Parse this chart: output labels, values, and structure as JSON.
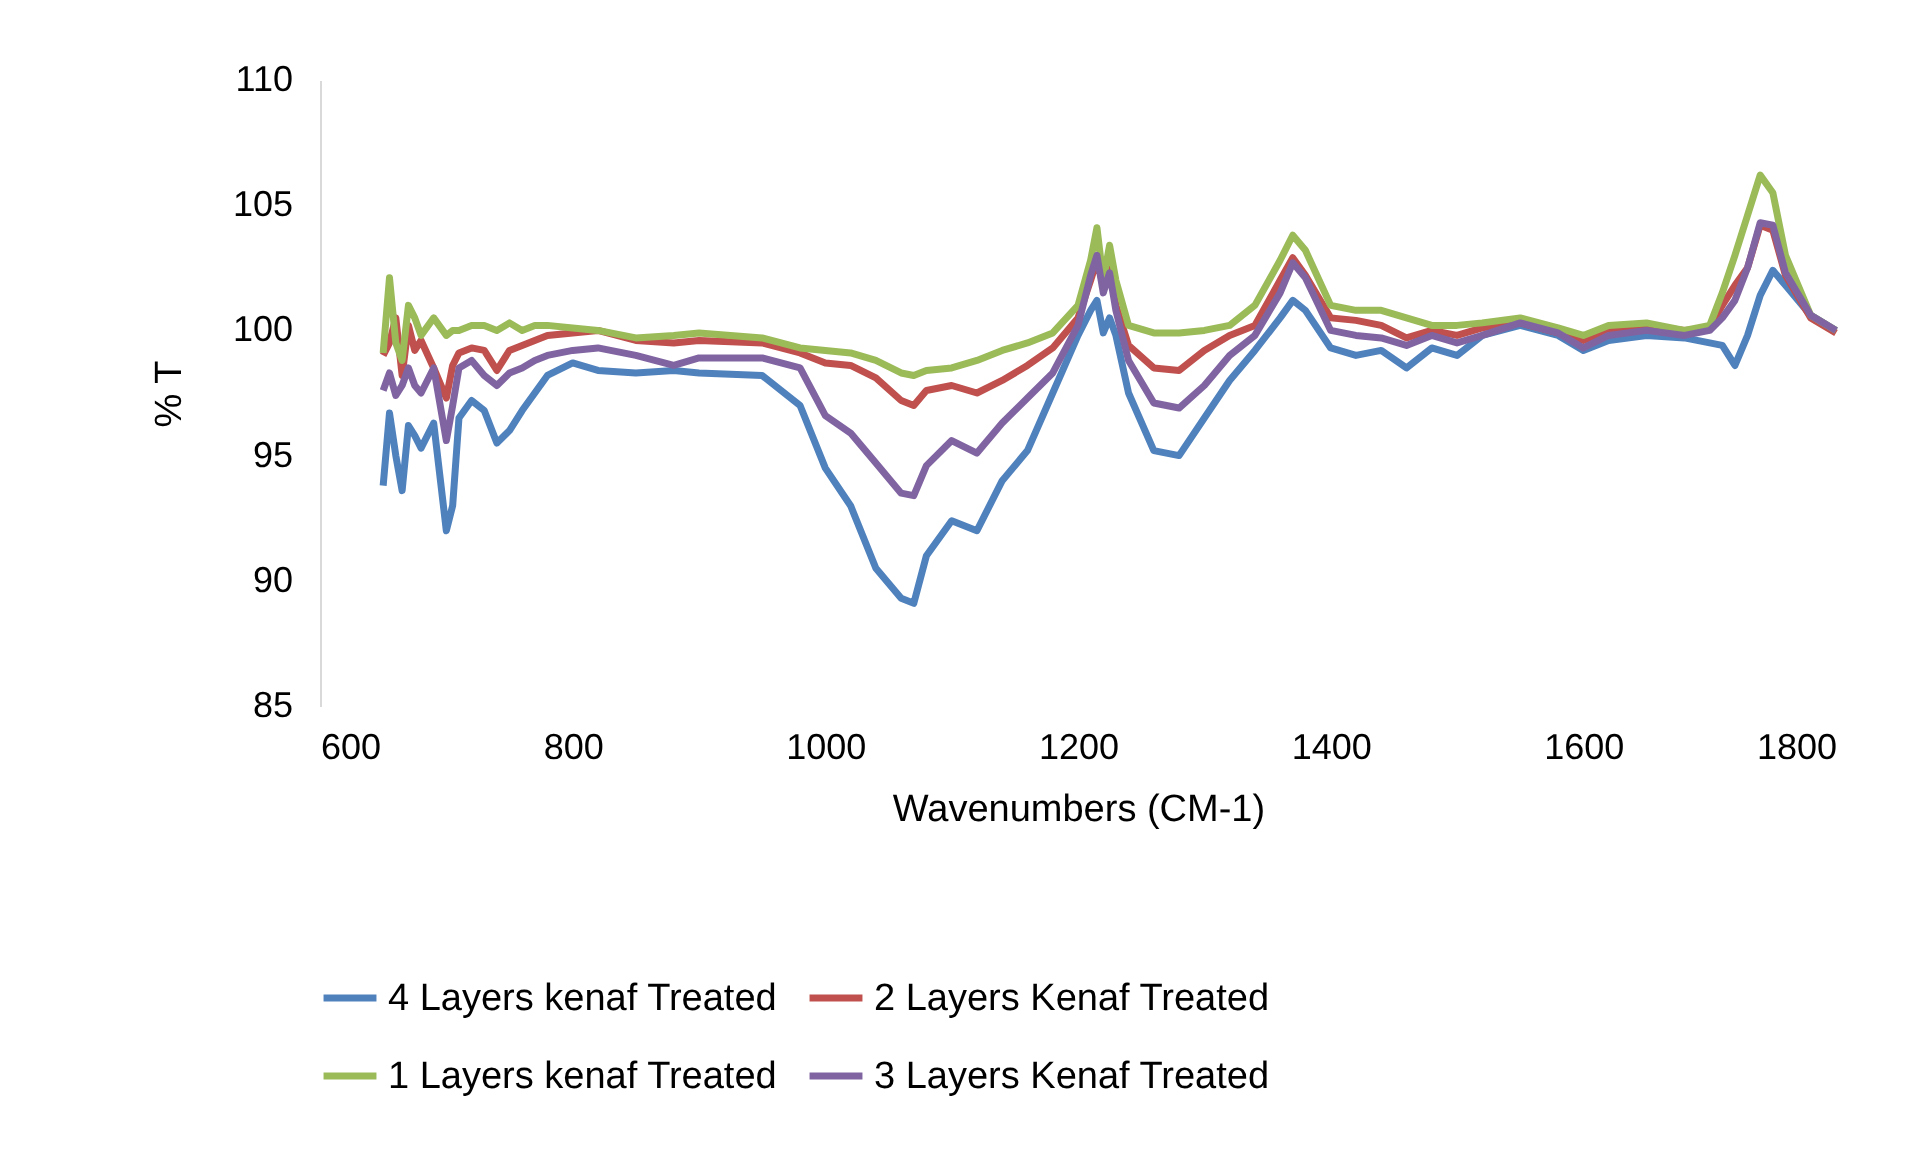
{
  "chart_data": {
    "type": "line",
    "xlabel": "Wavenumbers (CM-1)",
    "ylabel": "% T",
    "xlim": [
      600,
      1800
    ],
    "xticks": [
      600,
      800,
      1000,
      1200,
      1400,
      1600,
      1800
    ],
    "ylim": [
      85,
      110
    ],
    "yticks": [
      85,
      90,
      95,
      100,
      105,
      110
    ],
    "grid": false,
    "legend": "bottom",
    "marker": "none",
    "line_style": "solid",
    "x": [
      650,
      655,
      660,
      665,
      670,
      675,
      680,
      690,
      700,
      705,
      710,
      720,
      730,
      740,
      750,
      760,
      770,
      780,
      800,
      820,
      850,
      880,
      900,
      950,
      980,
      1000,
      1020,
      1040,
      1060,
      1070,
      1080,
      1100,
      1120,
      1140,
      1160,
      1180,
      1200,
      1210,
      1215,
      1220,
      1225,
      1230,
      1240,
      1260,
      1280,
      1300,
      1320,
      1340,
      1360,
      1370,
      1380,
      1400,
      1420,
      1440,
      1460,
      1480,
      1500,
      1520,
      1550,
      1580,
      1600,
      1620,
      1650,
      1680,
      1700,
      1710,
      1720,
      1730,
      1740,
      1750,
      1760,
      1780,
      1800
    ],
    "series": [
      {
        "name": "4 Layers kenaf Treated",
        "color": "#4f81bd",
        "values": [
          93.8,
          96.7,
          95,
          93.6,
          96.2,
          95.8,
          95.3,
          96.3,
          92,
          93,
          96.5,
          97.2,
          96.8,
          95.5,
          96,
          96.8,
          97.5,
          98.2,
          98.7,
          98.4,
          98.3,
          98.4,
          98.3,
          98.2,
          97,
          94.5,
          93,
          90.5,
          89.3,
          89.1,
          91,
          92.4,
          92,
          94,
          95.2,
          97.5,
          99.8,
          100.8,
          101.2,
          99.9,
          100.5,
          99.8,
          97.5,
          95.2,
          95,
          96.5,
          98,
          99.2,
          100.5,
          101.2,
          100.8,
          99.3,
          99,
          99.2,
          98.5,
          99.3,
          99,
          99.8,
          100.2,
          99.8,
          99.2,
          99.6,
          99.8,
          99.7,
          99.5,
          99.4,
          98.6,
          99.8,
          101.4,
          102.4,
          101.8,
          100.6,
          100
        ]
      },
      {
        "name": "2 Layers Kenaf Treated",
        "color": "#c0504d",
        "values": [
          99,
          99.5,
          100.5,
          98.2,
          100.2,
          99.2,
          99.6,
          98.5,
          97.3,
          98.6,
          99.1,
          99.3,
          99.2,
          98.4,
          99.2,
          99.4,
          99.6,
          99.8,
          99.9,
          100,
          99.6,
          99.5,
          99.6,
          99.5,
          99.1,
          98.7,
          98.6,
          98.1,
          97.2,
          97,
          97.6,
          97.8,
          97.5,
          98,
          98.6,
          99.3,
          100.5,
          102,
          102.8,
          101.8,
          102.5,
          101,
          99.4,
          98.5,
          98.4,
          99.2,
          99.8,
          100.2,
          102,
          102.9,
          102.2,
          100.5,
          100.4,
          100.2,
          99.7,
          100,
          99.8,
          100.1,
          100.3,
          99.9,
          99.6,
          100,
          100.2,
          100,
          100.1,
          101,
          101.8,
          102.5,
          104.2,
          104,
          102.2,
          100.5,
          99.9
        ]
      },
      {
        "name": "1 Layers kenaf Treated",
        "color": "#9bbb59",
        "values": [
          99.1,
          102.1,
          99.5,
          98.8,
          101,
          100.5,
          99.8,
          100.5,
          99.8,
          100,
          100,
          100.2,
          100.2,
          100,
          100.3,
          100,
          100.2,
          100.2,
          100.1,
          100,
          99.7,
          99.8,
          99.9,
          99.7,
          99.3,
          99.2,
          99.1,
          98.8,
          98.3,
          98.2,
          98.4,
          98.5,
          98.8,
          99.2,
          99.5,
          99.9,
          101,
          102.8,
          104.1,
          102,
          103.4,
          102,
          100.2,
          99.9,
          99.9,
          100,
          100.2,
          101,
          102.8,
          103.8,
          103.2,
          101,
          100.8,
          100.8,
          100.5,
          100.2,
          100.2,
          100.3,
          100.5,
          100.1,
          99.8,
          100.2,
          100.3,
          100,
          100.2,
          101.5,
          103,
          104.6,
          106.2,
          105.5,
          103,
          100.6,
          100
        ]
      },
      {
        "name": "3 Layers Kenaf Treated",
        "color": "#8064a2",
        "values": [
          97.6,
          98.3,
          97.4,
          97.8,
          98.5,
          97.8,
          97.5,
          98.5,
          95.6,
          97,
          98.5,
          98.8,
          98.2,
          97.8,
          98.3,
          98.5,
          98.8,
          99,
          99.2,
          99.3,
          99,
          98.6,
          98.9,
          98.9,
          98.5,
          96.6,
          95.9,
          94.7,
          93.5,
          93.4,
          94.6,
          95.6,
          95.1,
          96.3,
          97.3,
          98.3,
          100.2,
          102.2,
          103,
          101.5,
          102.3,
          100.8,
          98.8,
          97.1,
          96.9,
          97.8,
          99,
          99.8,
          101.5,
          102.7,
          102.1,
          100,
          99.8,
          99.7,
          99.4,
          99.8,
          99.5,
          99.8,
          100.3,
          99.9,
          99.3,
          99.8,
          100,
          99.8,
          100,
          100.5,
          101.2,
          102.5,
          104.3,
          104.2,
          102.3,
          100.6,
          100
        ]
      }
    ]
  }
}
